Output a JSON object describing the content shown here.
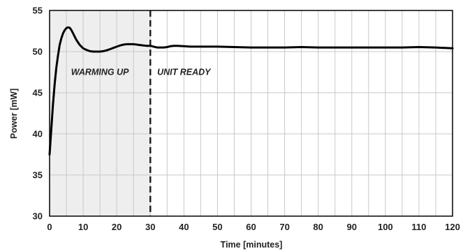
{
  "chart_data": {
    "type": "line",
    "xlabel": "Time [minutes]",
    "ylabel": "Power  [mW]",
    "xlim": [
      0,
      120
    ],
    "ylim": [
      30,
      55
    ],
    "x_ticks": [
      0,
      10,
      20,
      30,
      40,
      50,
      60,
      70,
      80,
      90,
      100,
      110,
      120
    ],
    "y_ticks": [
      30,
      35,
      40,
      45,
      50,
      55
    ],
    "grid": true,
    "legend": "none",
    "line_color": "#000000",
    "shaded_region": {
      "x_start": 0,
      "x_end": 30,
      "color": "#eeeeee"
    },
    "divider": {
      "x": 30,
      "style": "dashed"
    },
    "annotations": [
      {
        "text": "WARMING UP",
        "x": 15,
        "y": 47.5
      },
      {
        "text": "UNIT READY",
        "x": 40,
        "y": 47.5
      }
    ],
    "series": [
      {
        "x": [
          0,
          0.5,
          1,
          1.5,
          2,
          2.5,
          3,
          3.5,
          4,
          4.5,
          5,
          5.5,
          6,
          6.5,
          7,
          7.5,
          8,
          9,
          10,
          11,
          12,
          13,
          14,
          15,
          16,
          17,
          18,
          19,
          20,
          21,
          22,
          23,
          24,
          25,
          26,
          27,
          28,
          29,
          30,
          31,
          32,
          33,
          34,
          35,
          36,
          37,
          38,
          40,
          42,
          45,
          50,
          55,
          60,
          65,
          70,
          75,
          80,
          85,
          90,
          95,
          100,
          105,
          110,
          115,
          120
        ],
        "y": [
          37.5,
          40.5,
          43.5,
          46.0,
          48.0,
          49.5,
          50.8,
          51.6,
          52.2,
          52.6,
          52.85,
          52.95,
          52.9,
          52.6,
          52.2,
          51.8,
          51.4,
          50.8,
          50.4,
          50.2,
          50.05,
          50.0,
          50.0,
          50.0,
          50.05,
          50.15,
          50.3,
          50.45,
          50.6,
          50.75,
          50.85,
          50.9,
          50.9,
          50.9,
          50.85,
          50.8,
          50.75,
          50.7,
          50.7,
          50.6,
          50.5,
          50.5,
          50.5,
          50.55,
          50.65,
          50.7,
          50.7,
          50.65,
          50.6,
          50.6,
          50.6,
          50.55,
          50.5,
          50.5,
          50.5,
          50.55,
          50.5,
          50.5,
          50.5,
          50.5,
          50.5,
          50.5,
          50.55,
          50.5,
          50.4
        ]
      }
    ]
  }
}
